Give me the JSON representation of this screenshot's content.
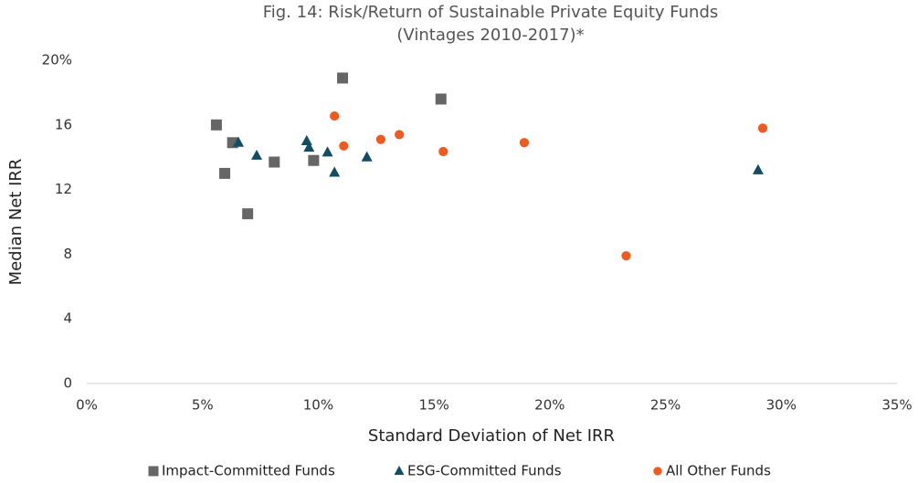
{
  "chart_data": {
    "type": "scatter",
    "title": "Fig. 14: Risk/Return of Sustainable Private Equity Funds",
    "subtitle": "(Vintages 2010-2017)*",
    "x_label": "Standard Deviation of Net IRR",
    "y_label": "Median Net IRR",
    "xlim": [
      0,
      35
    ],
    "xticks": [
      {
        "value": 0,
        "label": "0%"
      },
      {
        "value": 5,
        "label": "5%"
      },
      {
        "value": 10,
        "label": "10%"
      },
      {
        "value": 15,
        "label": "15%"
      },
      {
        "value": 20,
        "label": "20%"
      },
      {
        "value": 25,
        "label": "25%"
      },
      {
        "value": 30,
        "label": "30%"
      },
      {
        "value": 35,
        "label": "35%"
      }
    ],
    "ylim": [
      0,
      20
    ],
    "yticks": [
      0,
      4,
      8,
      12,
      16,
      {
        "value": 20,
        "label": "20%"
      }
    ],
    "grid": false,
    "legend": "bottom",
    "series": [
      {
        "name": "Impact-Committed Funds",
        "color": "#666666",
        "marker": "square",
        "x": [
          5.6,
          5.96,
          6.3,
          6.95,
          8.1,
          9.8,
          11.05,
          15.3
        ],
        "values": [
          16.0,
          13.0,
          14.9,
          10.5,
          13.7,
          13.8,
          18.9,
          17.6
        ]
      },
      {
        "name": "ESG-Committed Funds",
        "color": "#124e63",
        "marker": "triangle",
        "x": [
          6.55,
          7.34,
          9.5,
          9.6,
          10.4,
          10.7,
          12.1,
          29.0
        ],
        "values": [
          14.9,
          14.1,
          15.0,
          14.6,
          14.3,
          13.05,
          14.0,
          13.2
        ]
      },
      {
        "name": "All Other Funds",
        "color": "#f05a1e",
        "marker": "circle",
        "x": [
          10.7,
          11.1,
          12.7,
          13.5,
          15.4,
          18.9,
          23.3,
          29.2
        ],
        "values": [
          16.55,
          14.7,
          15.1,
          15.4,
          14.35,
          14.9,
          7.9,
          15.8
        ]
      }
    ]
  }
}
